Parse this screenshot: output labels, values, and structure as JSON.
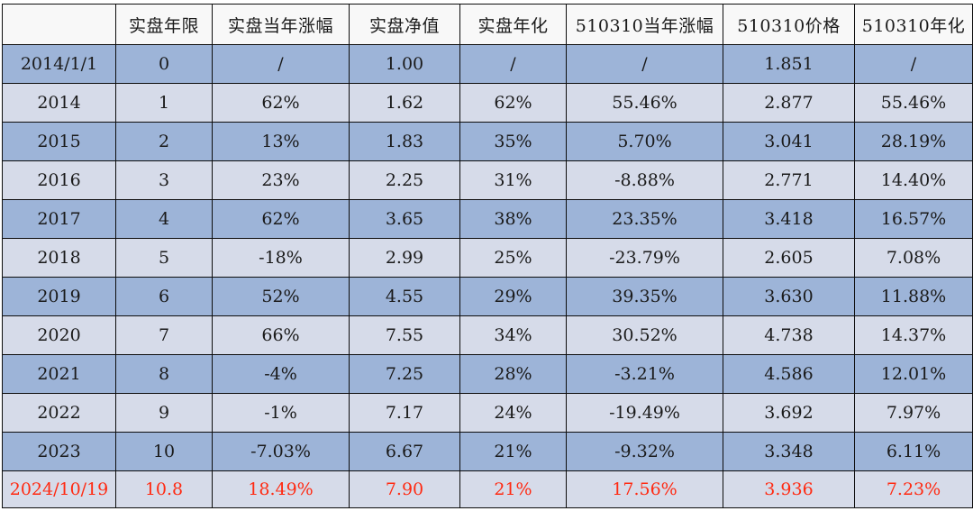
{
  "table": {
    "headers": [
      "",
      "实盘年限",
      "实盘当年涨幅",
      "实盘净值",
      "实盘年化",
      "510310当年涨幅",
      "510310价格",
      "510310年化"
    ],
    "rows": [
      [
        "2014/1/1",
        "0",
        "/",
        "1.00",
        "/",
        "/",
        "1.851",
        "/"
      ],
      [
        "2014",
        "1",
        "62%",
        "1.62",
        "62%",
        "55.46%",
        "2.877",
        "55.46%"
      ],
      [
        "2015",
        "2",
        "13%",
        "1.83",
        "35%",
        "5.70%",
        "3.041",
        "28.19%"
      ],
      [
        "2016",
        "3",
        "23%",
        "2.25",
        "31%",
        "-8.88%",
        "2.771",
        "14.40%"
      ],
      [
        "2017",
        "4",
        "62%",
        "3.65",
        "38%",
        "23.35%",
        "3.418",
        "16.57%"
      ],
      [
        "2018",
        "5",
        "-18%",
        "2.99",
        "25%",
        "-23.79%",
        "2.605",
        "7.08%"
      ],
      [
        "2019",
        "6",
        "52%",
        "4.55",
        "29%",
        "39.35%",
        "3.630",
        "11.88%"
      ],
      [
        "2020",
        "7",
        "66%",
        "7.55",
        "34%",
        "30.52%",
        "4.738",
        "14.37%"
      ],
      [
        "2021",
        "8",
        "-4%",
        "7.25",
        "28%",
        "-3.21%",
        "4.586",
        "12.01%"
      ],
      [
        "2022",
        "9",
        "-1%",
        "7.17",
        "24%",
        "-19.49%",
        "3.692",
        "7.97%"
      ],
      [
        "2023",
        "10",
        "-7.03%",
        "6.67",
        "21%",
        "-9.32%",
        "3.348",
        "6.11%"
      ],
      [
        "2024/10/19",
        "10.8",
        "18.49%",
        "7.90",
        "21%",
        "17.56%",
        "3.936",
        "7.23%"
      ]
    ]
  },
  "colors": {
    "header_bg": "#f8f8f8",
    "row_light": "#d6dbe9",
    "row_dark": "#9db4d8",
    "highlight_text": "#ff2a12",
    "border": "#0d0d0d"
  }
}
